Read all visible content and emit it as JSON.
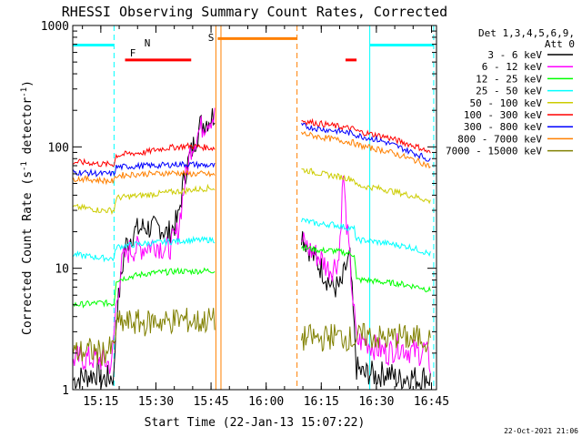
{
  "chart_data": {
    "type": "line",
    "title": "RHESSI Observing Summary Count Rates, Corrected",
    "xlabel": "Start Time (22-Jan-13 15:07:22)",
    "ylabel_main": "Corrected Count Rate (s",
    "ylabel_sup": "-1",
    "ylabel_tail": " detector",
    "ylabel_end": ")",
    "footer_date": "22-Oct-2021 21:06",
    "y_scale": "log",
    "ylim": [
      1,
      1000
    ],
    "xlim": [
      15.1227,
      16.7727
    ],
    "x_ticks": [
      {
        "label": "15:15",
        "x": 15.25
      },
      {
        "label": "15:30",
        "x": 15.5
      },
      {
        "label": "15:45",
        "x": 15.75
      },
      {
        "label": "16:00",
        "x": 16.0
      },
      {
        "label": "16:15",
        "x": 16.25
      },
      {
        "label": "16:30",
        "x": 16.5
      },
      {
        "label": "16:45",
        "x": 16.75
      }
    ],
    "y_ticks": [
      {
        "label": "1",
        "y": 1
      },
      {
        "label": "10",
        "y": 10
      },
      {
        "label": "100",
        "y": 100
      },
      {
        "label": "1000",
        "y": 1000
      }
    ],
    "legend": {
      "header1": "Det 1,3,4,5,6,9,",
      "header2": "Att 0",
      "placement": "right-outside"
    },
    "series": [
      {
        "name": "3 - 6 keV",
        "color": "#000000",
        "x": [
          15.125,
          15.25,
          15.251,
          15.31,
          15.32,
          15.36,
          15.4,
          15.45,
          15.5,
          15.52,
          15.555,
          15.6,
          15.63,
          15.66,
          15.7,
          15.74,
          15.772,
          16.16,
          16.17,
          16.2,
          16.22,
          16.25,
          16.28,
          16.3,
          16.34,
          16.36,
          16.38,
          16.41,
          16.45,
          16.46,
          16.5,
          16.55,
          16.6,
          16.65,
          16.7,
          16.72,
          16.75
        ],
        "y": [
          1.2,
          1.4,
          1.2,
          1.3,
          4,
          15,
          20,
          22,
          21,
          22,
          19,
          25,
          60,
          90,
          150,
          170,
          190,
          20,
          18,
          14,
          12,
          10,
          8,
          7,
          7,
          10,
          12,
          1.5,
          1.3,
          1.4,
          1.3,
          1.4,
          1.2,
          1.3,
          1.2,
          1.3,
          1.2
        ]
      },
      {
        "name": "6 - 12 keV",
        "color": "#ff00ff",
        "x": [
          15.125,
          15.24,
          15.3,
          15.315,
          15.33,
          15.35,
          15.38,
          15.45,
          15.5,
          15.555,
          15.6,
          15.63,
          15.66,
          15.7,
          15.74,
          15.772,
          16.16,
          16.2,
          16.25,
          16.28,
          16.3,
          16.33,
          16.35,
          16.36,
          16.38,
          16.41,
          16.45,
          16.5,
          16.55,
          16.6,
          16.65,
          16.7,
          16.72,
          16.75
        ],
        "y": [
          1.8,
          1.8,
          1.6,
          4,
          7,
          12,
          14,
          15,
          16,
          14,
          20,
          50,
          100,
          140,
          170,
          180,
          17,
          14,
          12,
          10,
          10,
          12,
          60,
          30,
          11,
          2.5,
          2.5,
          2.2,
          2.0,
          2.3,
          2.1,
          2.0,
          2.2,
          1.5
        ]
      },
      {
        "name": "12 - 25 keV",
        "color": "#00ff00",
        "x": [
          15.125,
          15.2,
          15.25,
          15.31,
          15.32,
          15.38,
          15.45,
          15.5,
          15.55,
          15.6,
          15.65,
          15.7,
          15.75,
          15.772,
          16.16,
          16.2,
          16.25,
          16.3,
          16.35,
          16.4,
          16.41,
          16.45,
          16.5,
          16.55,
          16.6,
          16.65,
          16.7,
          16.75
        ],
        "y": [
          5,
          5.1,
          5.2,
          5.1,
          8,
          8.5,
          9,
          9.2,
          9.3,
          9.5,
          9.4,
          9.5,
          9.6,
          9.5,
          15,
          14.5,
          14,
          14,
          13.5,
          13,
          8,
          8,
          7.8,
          7.6,
          7.5,
          7.2,
          7,
          6.5
        ]
      },
      {
        "name": "25 - 50 keV",
        "color": "#00ffff",
        "x": [
          15.125,
          15.2,
          15.25,
          15.31,
          15.32,
          15.38,
          15.45,
          15.5,
          15.55,
          15.6,
          15.65,
          15.7,
          15.75,
          15.772,
          16.16,
          16.2,
          16.25,
          16.3,
          16.35,
          16.4,
          16.41,
          16.45,
          16.5,
          16.55,
          16.6,
          16.65,
          16.7,
          16.75
        ],
        "y": [
          13,
          12.5,
          12.2,
          12,
          15,
          15.5,
          16,
          16.2,
          16.5,
          16.8,
          17,
          17,
          17.2,
          17,
          25,
          24,
          23,
          23,
          22,
          21,
          17,
          17,
          16.5,
          16,
          15.5,
          15,
          14,
          13
        ]
      },
      {
        "name": "50 - 100 keV",
        "color": "#cccc00",
        "x": [
          15.125,
          15.2,
          15.25,
          15.31,
          15.32,
          15.38,
          15.45,
          15.5,
          15.55,
          15.6,
          15.65,
          15.7,
          15.75,
          15.772,
          16.16,
          16.2,
          16.25,
          16.3,
          16.35,
          16.4,
          16.41,
          16.45,
          16.5,
          16.55,
          16.6,
          16.65,
          16.7,
          16.75
        ],
        "y": [
          32,
          31,
          30,
          30,
          38,
          39,
          40,
          41,
          42,
          43,
          44,
          45,
          46,
          45,
          65,
          63,
          60,
          58,
          56,
          54,
          48,
          47,
          46,
          44,
          42,
          40,
          38,
          35
        ]
      },
      {
        "name": "100 - 300 keV",
        "color": "#ff0000",
        "x": [
          15.125,
          15.2,
          15.25,
          15.31,
          15.32,
          15.38,
          15.45,
          15.5,
          15.55,
          15.6,
          15.65,
          15.7,
          15.75,
          15.772,
          16.16,
          16.2,
          16.25,
          16.3,
          16.35,
          16.4,
          16.41,
          16.45,
          16.5,
          16.55,
          16.6,
          16.65,
          16.7,
          16.75
        ],
        "y": [
          75,
          74,
          72,
          72,
          85,
          88,
          90,
          95,
          98,
          100,
          102,
          100,
          98,
          97,
          165,
          160,
          155,
          150,
          145,
          140,
          135,
          130,
          125,
          120,
          112,
          105,
          98,
          88
        ]
      },
      {
        "name": "300 - 800 keV",
        "color": "#0000ff",
        "x": [
          15.125,
          15.2,
          15.25,
          15.31,
          15.32,
          15.38,
          15.45,
          15.5,
          15.55,
          15.6,
          15.65,
          15.7,
          15.75,
          15.772,
          16.16,
          16.2,
          16.25,
          16.3,
          16.35,
          16.4,
          16.41,
          16.45,
          16.5,
          16.55,
          16.6,
          16.65,
          16.7,
          16.75
        ],
        "y": [
          62,
          61,
          60,
          60,
          68,
          69,
          70,
          70,
          71,
          72,
          72,
          71,
          70,
          70,
          150,
          145,
          140,
          137,
          133,
          128,
          125,
          120,
          115,
          108,
          100,
          92,
          85,
          76
        ]
      },
      {
        "name": "800 - 7000 keV",
        "color": "#ff8000",
        "x": [
          15.125,
          15.2,
          15.25,
          15.31,
          15.32,
          15.38,
          15.45,
          15.5,
          15.55,
          15.6,
          15.65,
          15.7,
          15.75,
          15.772,
          16.16,
          16.2,
          16.25,
          16.3,
          16.35,
          16.4,
          16.41,
          16.45,
          16.5,
          16.55,
          16.6,
          16.65,
          16.7,
          16.75
        ],
        "y": [
          55,
          54,
          53,
          52,
          58,
          59,
          60,
          60,
          61,
          61,
          60,
          60,
          59,
          58,
          130,
          125,
          120,
          116,
          112,
          108,
          104,
          100,
          96,
          92,
          86,
          80,
          75,
          68
        ]
      },
      {
        "name": "7000 - 15000 keV",
        "color": "#808000",
        "x": [
          15.125,
          15.2,
          15.25,
          15.31,
          15.32,
          15.4,
          15.45,
          15.5,
          15.55,
          15.6,
          15.65,
          15.7,
          15.75,
          15.772,
          16.16,
          16.2,
          16.25,
          16.3,
          16.35,
          16.4,
          16.45,
          16.5,
          16.55,
          16.6,
          16.65,
          16.7,
          16.75
        ],
        "y": [
          2,
          2.1,
          2,
          2.2,
          3.5,
          3.6,
          3.5,
          3.7,
          3.6,
          3.8,
          3.7,
          3.6,
          3.8,
          3.6,
          2.6,
          2.7,
          2.6,
          2.8,
          2.7,
          2.6,
          2.8,
          2.7,
          2.6,
          2.8,
          2.6,
          2.7,
          2.5
        ]
      }
    ],
    "annotations": [
      {
        "label": "N",
        "color": "#00ffff"
      },
      {
        "label": "F",
        "color": "#ff0000"
      },
      {
        "label": "S",
        "color": "#ff8000"
      }
    ],
    "flag_bars": [
      {
        "kind": "night",
        "color": "#00ffff",
        "x0": 15.1227,
        "x1": 15.31,
        "y": 690
      },
      {
        "kind": "night",
        "color": "#00ffff",
        "x0": 16.47,
        "x1": 16.76,
        "y": 690
      },
      {
        "kind": "flare",
        "color": "#ff0000",
        "x0": 15.36,
        "x1": 15.66,
        "y": 520
      },
      {
        "kind": "flare",
        "color": "#ff0000",
        "x0": 16.36,
        "x1": 16.41,
        "y": 520
      },
      {
        "kind": "saa",
        "color": "#ff8000",
        "x0": 15.78,
        "x1": 16.14,
        "y": 780
      }
    ],
    "vlines": [
      {
        "x": 15.31,
        "color": "#00ffff",
        "dash": true
      },
      {
        "x": 16.47,
        "color": "#00ffff",
        "dash": false
      },
      {
        "x": 16.76,
        "color": "#00ffff",
        "dash": true
      },
      {
        "x": 15.772,
        "color": "#ff8000",
        "dash": false
      },
      {
        "x": 15.795,
        "color": "#ff8000",
        "dash": false
      },
      {
        "x": 16.14,
        "color": "#ff8000",
        "dash": true
      },
      {
        "x": 15.1227,
        "color": "#00ffff",
        "dash": false
      }
    ],
    "grid": false
  }
}
